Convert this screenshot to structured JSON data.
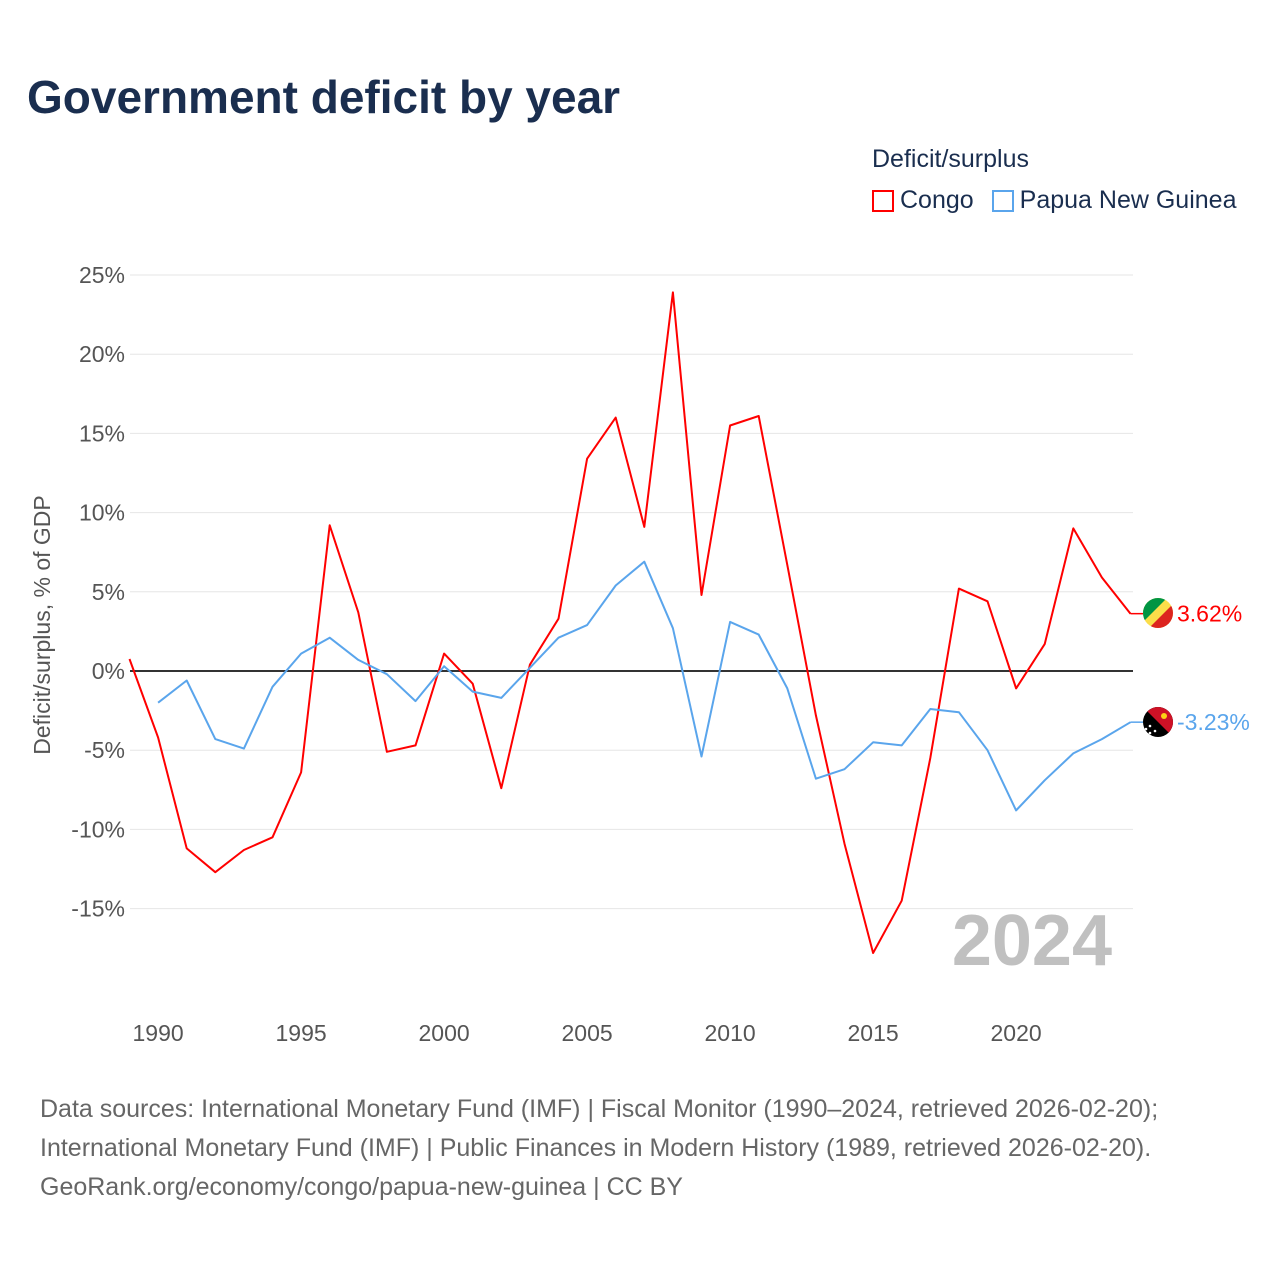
{
  "title": "Government deficit by year",
  "legend": {
    "title": "Deficit/surplus",
    "items": [
      {
        "label": "Congo",
        "color": "#ff0000"
      },
      {
        "label": "Papua New Guinea",
        "color": "#5aa5ec"
      }
    ]
  },
  "watermark_year": "2024",
  "footer": {
    "line1": "Data sources: International Monetary Fund (IMF) | Fiscal Monitor (1990–2024, retrieved 2026-02-20);",
    "line2": "International Monetary Fund (IMF) | Public Finances in Modern History (1989, retrieved 2026-02-20).",
    "line3": "GeoRank.org/economy/congo/papua-new-guinea | CC BY"
  },
  "chart_data": {
    "type": "line",
    "title": "Government deficit by year",
    "xlabel": "",
    "ylabel": "Deficit/surplus, % of GDP",
    "xlim": [
      1989,
      2024
    ],
    "ylim": [
      -20,
      25
    ],
    "x_ticks": [
      1990,
      1995,
      2000,
      2005,
      2010,
      2015,
      2020
    ],
    "y_ticks": [
      {
        "v": 25,
        "label": "25%"
      },
      {
        "v": 20,
        "label": "20%"
      },
      {
        "v": 15,
        "label": "15%"
      },
      {
        "v": 10,
        "label": "10%"
      },
      {
        "v": 5,
        "label": "5%"
      },
      {
        "v": 0,
        "label": "0%"
      },
      {
        "v": -5,
        "label": "-5%"
      },
      {
        "v": -10,
        "label": "-10%"
      },
      {
        "v": -15,
        "label": "-15%"
      }
    ],
    "grid": true,
    "legend_position": "top-right",
    "series": [
      {
        "name": "Congo",
        "color": "#ff0000",
        "end_label": "3.62%",
        "start_year": 1989,
        "values": [
          0.76,
          -4.2,
          -11.2,
          -12.7,
          -11.3,
          -10.5,
          -6.4,
          9.2,
          3.7,
          -5.1,
          -4.7,
          1.1,
          -0.8,
          -7.4,
          0.4,
          3.3,
          13.4,
          16.0,
          9.1,
          23.9,
          4.8,
          15.5,
          16.1,
          6.7,
          -2.8,
          -10.9,
          -17.8,
          -14.5,
          -5.5,
          5.2,
          4.4,
          -1.1,
          1.7,
          9.0,
          5.9,
          3.62
        ]
      },
      {
        "name": "Papua New Guinea",
        "color": "#5aa5ec",
        "end_label": "-3.23%",
        "start_year": 1990,
        "values": [
          -2.0,
          -0.6,
          -4.3,
          -4.9,
          -1.0,
          1.1,
          2.1,
          0.7,
          -0.2,
          -1.9,
          0.3,
          -1.3,
          -1.7,
          0.2,
          2.1,
          2.9,
          5.4,
          6.9,
          2.7,
          -5.4,
          3.1,
          2.3,
          -1.1,
          -6.8,
          -6.2,
          -4.5,
          -4.7,
          -2.4,
          -2.6,
          -5.0,
          -8.8,
          -6.9,
          -5.2,
          -4.3,
          -3.23
        ]
      }
    ]
  }
}
